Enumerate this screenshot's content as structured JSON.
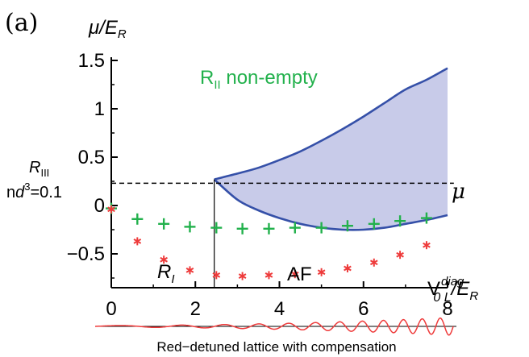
{
  "chart_data": {
    "type": "line",
    "panel_label": "(a)",
    "ylabel": "μ/E_R",
    "xlabel": "V_{0L}^{diag}/E_R",
    "xlim": [
      0,
      8
    ],
    "ylim": [
      -0.85,
      1.5
    ],
    "x_ticks": [
      0,
      2,
      4,
      6,
      8
    ],
    "y_ticks": [
      1.5,
      1,
      0.5,
      0,
      -0.5
    ],
    "x_tick_labels": [
      "0",
      "2",
      "4",
      "6",
      "8"
    ],
    "y_tick_labels": [
      "1.5",
      "1",
      "0.5",
      "0",
      "−0.5"
    ],
    "colors": {
      "region_fill": "#c8cbe9",
      "boundary": "#3550a8",
      "green": "#22b14c",
      "red": "#ee3b3b"
    },
    "upper_boundary": {
      "x": [
        2.45,
        3.0,
        3.5,
        4.0,
        4.5,
        5.0,
        5.5,
        6.0,
        6.5,
        7.0,
        7.5,
        8.0
      ],
      "y": [
        0.27,
        0.33,
        0.39,
        0.47,
        0.56,
        0.67,
        0.79,
        0.92,
        1.06,
        1.2,
        1.3,
        1.42
      ]
    },
    "lower_boundary": {
      "x": [
        2.45,
        3.0,
        3.5,
        4.0,
        4.5,
        5.0,
        5.5,
        6.0,
        6.5,
        7.0,
        7.5,
        8.0
      ],
      "y": [
        0.27,
        0.06,
        -0.05,
        -0.13,
        -0.19,
        -0.23,
        -0.25,
        -0.25,
        -0.23,
        -0.19,
        -0.15,
        -0.1
      ]
    },
    "mu_line": {
      "y": 0.23,
      "label": "μ"
    },
    "vertical_line": {
      "x": 2.45
    },
    "series": [
      {
        "marker": "+",
        "color": "#22b14c",
        "x": [
          0.0,
          0.62,
          1.25,
          1.87,
          2.5,
          3.12,
          3.75,
          4.37,
          5.0,
          5.62,
          6.25,
          6.87,
          7.5
        ],
        "y": [
          -0.03,
          -0.14,
          -0.19,
          -0.22,
          -0.23,
          -0.24,
          -0.24,
          -0.23,
          -0.23,
          -0.21,
          -0.19,
          -0.16,
          -0.13
        ]
      },
      {
        "marker": "*",
        "color": "#ee3b3b",
        "x": [
          0.0,
          0.62,
          1.25,
          1.87,
          2.5,
          3.12,
          3.75,
          4.37,
          5.0,
          5.62,
          6.25,
          6.87,
          7.5
        ],
        "y": [
          -0.04,
          -0.37,
          -0.56,
          -0.67,
          -0.72,
          -0.73,
          -0.72,
          -0.71,
          -0.69,
          -0.65,
          -0.59,
          -0.51,
          -0.41
        ]
      }
    ],
    "annotations": {
      "r_ii": "R_II non-empty",
      "r_iii": "R_III",
      "density": "nd^3=0.1",
      "r_i": "R_I",
      "af": "AF"
    },
    "caption": "Red−detuned lattice with compensation"
  }
}
